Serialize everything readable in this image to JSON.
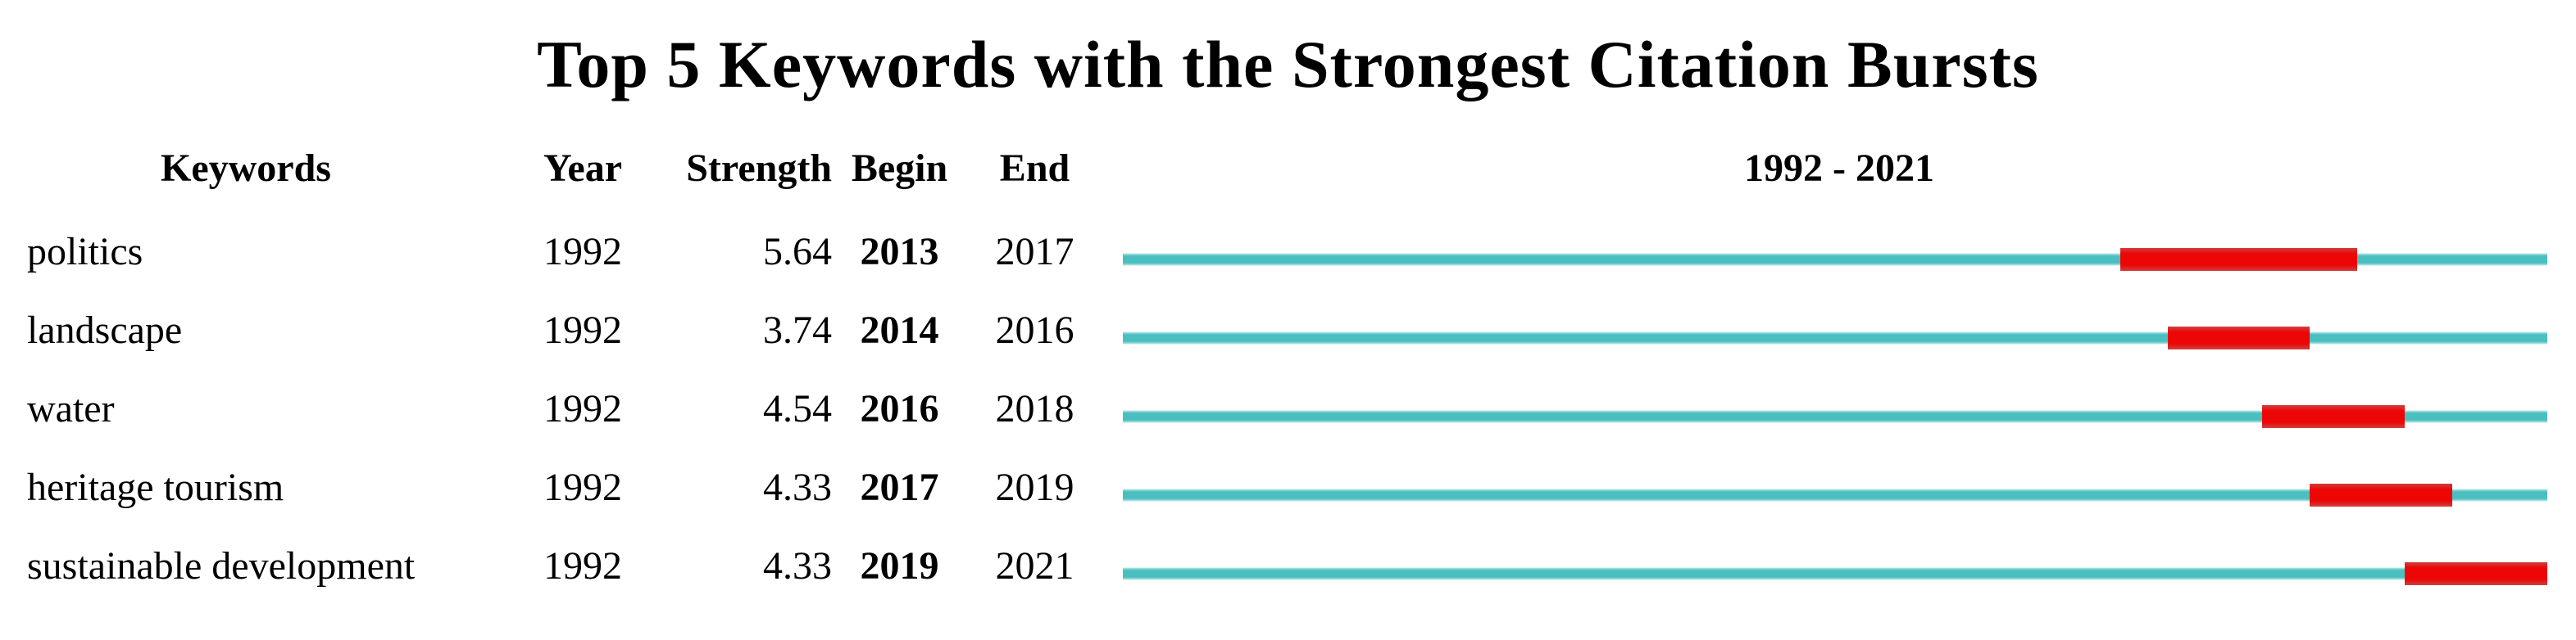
{
  "title": "Top 5 Keywords with the Strongest Citation Bursts",
  "header": {
    "keyword": "Keywords",
    "year": "Year",
    "strength": "Strength",
    "begin": "Begin",
    "end": "End",
    "range_label": "1992 - 2021"
  },
  "colors": {
    "background": "#ffffff",
    "text": "#000000",
    "timeline_teal": "#4bbfbf",
    "burst_red": "#ec0606"
  },
  "chart_data": {
    "type": "burst_timeline",
    "title": "Top 5 Keywords with the Strongest Citation Bursts",
    "columns": [
      "Keywords",
      "Year",
      "Strength",
      "Begin",
      "End"
    ],
    "x_range": [
      1992,
      2021
    ],
    "x_label": "1992 - 2021",
    "legend": {
      "timeline_color_meaning": "full period 1992-2021",
      "burst_color_meaning": "citation burst interval"
    },
    "rows": [
      {
        "keyword": "politics",
        "year": 1992,
        "strength": "5.64",
        "begin": 2013,
        "end": 2017
      },
      {
        "keyword": "landscape",
        "year": 1992,
        "strength": "3.74",
        "begin": 2014,
        "end": 2016
      },
      {
        "keyword": "water",
        "year": 1992,
        "strength": "4.54",
        "begin": 2016,
        "end": 2018
      },
      {
        "keyword": "heritage tourism",
        "year": 1992,
        "strength": "4.33",
        "begin": 2017,
        "end": 2019
      },
      {
        "keyword": "sustainable development",
        "year": 1992,
        "strength": "4.33",
        "begin": 2019,
        "end": 2021
      }
    ]
  }
}
